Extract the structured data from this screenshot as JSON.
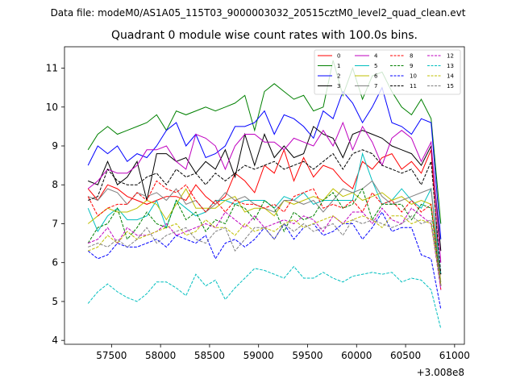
{
  "figure": {
    "data_file_text": "Data file: modeM0/AS1A05_115T03_9000003032_20515cztM0_level2_quad_clean.evt",
    "title": "Quadrant 0 module wise count rates with 100.0s bins.",
    "x_offset_text": "+3.008e8"
  },
  "chart_data": {
    "type": "line",
    "title": "Quadrant 0 module wise count rates with 100.0s bins.",
    "xlabel": "",
    "ylabel": "",
    "x_offset": 300800000,
    "xlim": [
      57020,
      61100
    ],
    "ylim": [
      3.9,
      11.55
    ],
    "grid": false,
    "legend_position": "top-right",
    "legend_ncol": 4,
    "xticks": [
      57500,
      58000,
      58500,
      59000,
      59500,
      60000,
      60500,
      61000
    ],
    "xtick_labels": [
      "57500",
      "58000",
      "58500",
      "59000",
      "59500",
      "60000",
      "60500",
      "61000"
    ],
    "yticks": [
      4,
      5,
      6,
      7,
      8,
      9,
      10,
      11
    ],
    "ytick_labels": [
      "4",
      "5",
      "6",
      "7",
      "8",
      "9",
      "10",
      "11"
    ],
    "x": [
      57260,
      57360,
      57460,
      57560,
      57660,
      57760,
      57860,
      57960,
      58060,
      58160,
      58260,
      58360,
      58460,
      58560,
      58660,
      58760,
      58860,
      58960,
      59060,
      59160,
      59260,
      59360,
      59460,
      59560,
      59660,
      59760,
      59860,
      59960,
      60060,
      60160,
      60260,
      60360,
      60460,
      60560,
      60660,
      60760,
      60860
    ],
    "series": [
      {
        "name": "0",
        "color": "#ff0000",
        "dash": "solid",
        "values": [
          7.9,
          7.6,
          8.0,
          7.9,
          7.7,
          7.6,
          7.5,
          7.6,
          7.7,
          7.7,
          7.6,
          8.0,
          7.7,
          7.5,
          7.7,
          8.3,
          8.1,
          7.8,
          8.5,
          8.3,
          8.9,
          8.1,
          8.7,
          8.2,
          8.5,
          8.4,
          8.1,
          7.9,
          8.6,
          8.4,
          8.7,
          8.8,
          8.4,
          8.6,
          8.3,
          8.9,
          5.4
        ]
      },
      {
        "name": "1",
        "color": "#008000",
        "dash": "solid",
        "values": [
          8.9,
          9.3,
          9.5,
          9.3,
          9.4,
          9.5,
          9.6,
          9.8,
          9.4,
          9.9,
          9.8,
          9.9,
          10.0,
          9.9,
          10.0,
          10.1,
          10.3,
          9.4,
          10.4,
          10.6,
          10.4,
          10.2,
          10.3,
          9.9,
          10.0,
          11.2,
          10.3,
          11.0,
          10.2,
          10.8,
          10.9,
          10.4,
          10.0,
          9.8,
          10.2,
          9.7,
          7.0
        ]
      },
      {
        "name": "2",
        "color": "#0000ff",
        "dash": "solid",
        "values": [
          8.5,
          9.0,
          8.8,
          9.0,
          8.6,
          8.8,
          8.7,
          9.0,
          9.4,
          9.6,
          9.0,
          9.3,
          8.7,
          8.8,
          9.0,
          9.5,
          9.5,
          9.6,
          9.9,
          9.3,
          9.8,
          9.7,
          9.5,
          9.2,
          9.9,
          9.7,
          10.4,
          10.1,
          9.6,
          10.0,
          10.5,
          9.6,
          9.5,
          9.3,
          9.7,
          9.6,
          6.6
        ]
      },
      {
        "name": "3",
        "color": "#000000",
        "dash": "solid",
        "values": [
          8.1,
          8.0,
          8.6,
          8.0,
          8.2,
          8.6,
          7.6,
          8.8,
          8.8,
          8.6,
          8.7,
          8.3,
          8.6,
          8.4,
          8.9,
          8.2,
          9.3,
          8.5,
          9.3,
          8.7,
          9.0,
          8.7,
          8.8,
          9.5,
          9.3,
          9.2,
          8.7,
          9.3,
          9.4,
          9.3,
          9.2,
          9.0,
          8.9,
          8.8,
          8.5,
          9.0,
          6.3
        ]
      },
      {
        "name": "4",
        "color": "#bf00bf",
        "dash": "solid",
        "values": [
          7.9,
          8.1,
          8.4,
          8.3,
          8.3,
          8.5,
          8.9,
          8.9,
          9.0,
          8.6,
          8.4,
          9.3,
          9.2,
          9.0,
          8.4,
          9.0,
          9.3,
          9.3,
          9.1,
          9.1,
          8.9,
          9.2,
          9.1,
          9.0,
          9.4,
          9.0,
          9.6,
          8.9,
          9.5,
          9.1,
          8.5,
          9.2,
          9.4,
          9.2,
          8.6,
          9.1,
          6.0
        ]
      },
      {
        "name": "5",
        "color": "#00bfbf",
        "dash": "solid",
        "values": [
          7.4,
          6.8,
          7.2,
          7.4,
          7.1,
          7.1,
          7.2,
          7.6,
          6.9,
          7.6,
          7.4,
          7.2,
          7.3,
          7.6,
          7.6,
          7.5,
          7.6,
          7.6,
          7.6,
          7.4,
          7.7,
          7.6,
          7.8,
          7.5,
          7.6,
          7.6,
          7.6,
          7.6,
          8.8,
          8.1,
          7.5,
          7.6,
          7.9,
          7.6,
          7.4,
          7.9,
          5.7
        ]
      },
      {
        "name": "6",
        "color": "#bfbf00",
        "dash": "solid",
        "values": [
          7.0,
          7.2,
          7.4,
          7.3,
          7.3,
          7.4,
          7.6,
          7.5,
          7.1,
          7.5,
          7.9,
          7.4,
          7.4,
          7.4,
          7.6,
          7.7,
          7.3,
          7.4,
          7.4,
          7.2,
          7.6,
          7.5,
          7.6,
          7.7,
          7.6,
          7.9,
          7.7,
          7.8,
          7.6,
          7.7,
          7.8,
          7.6,
          7.7,
          7.5,
          7.6,
          7.5,
          5.5
        ]
      },
      {
        "name": "7",
        "color": "#808080",
        "dash": "solid",
        "values": [
          7.7,
          7.6,
          7.9,
          7.8,
          7.5,
          7.8,
          7.7,
          7.8,
          7.6,
          7.9,
          7.5,
          7.6,
          7.3,
          7.5,
          7.8,
          7.6,
          7.7,
          7.5,
          7.4,
          7.3,
          7.6,
          7.6,
          7.5,
          7.6,
          7.3,
          7.6,
          7.9,
          7.8,
          7.9,
          8.1,
          7.7,
          7.5,
          7.6,
          7.7,
          7.8,
          7.9,
          5.4
        ]
      },
      {
        "name": "8",
        "color": "#ff0000",
        "dash": "dashed",
        "values": [
          7.7,
          7.2,
          7.4,
          7.5,
          7.5,
          7.8,
          7.6,
          8.1,
          7.9,
          7.8,
          8.0,
          7.6,
          7.3,
          7.6,
          7.3,
          7.6,
          7.5,
          7.5,
          7.4,
          7.5,
          7.3,
          7.7,
          7.8,
          7.9,
          7.4,
          7.5,
          7.4,
          7.6,
          7.3,
          7.8,
          7.5,
          7.6,
          7.3,
          7.6,
          7.3,
          7.5,
          5.3
        ]
      },
      {
        "name": "9",
        "color": "#008000",
        "dash": "dashed",
        "values": [
          6.5,
          6.9,
          7.0,
          7.4,
          6.6,
          6.9,
          7.3,
          7.0,
          6.9,
          7.6,
          7.1,
          7.3,
          6.8,
          7.1,
          7.0,
          7.5,
          7.4,
          7.1,
          7.6,
          7.4,
          6.8,
          7.3,
          7.1,
          7.2,
          7.6,
          7.8,
          7.4,
          7.5,
          7.9,
          7.1,
          7.5,
          7.5,
          7.5,
          7.1,
          7.5,
          7.4,
          5.4
        ]
      },
      {
        "name": "10",
        "color": "#0000ff",
        "dash": "dashed",
        "values": [
          6.3,
          6.1,
          6.2,
          6.5,
          6.4,
          6.4,
          6.5,
          6.6,
          6.4,
          6.7,
          6.6,
          6.5,
          6.7,
          6.1,
          6.5,
          6.6,
          6.4,
          6.6,
          6.9,
          6.6,
          7.0,
          6.6,
          6.9,
          7.0,
          6.7,
          6.8,
          7.0,
          7.0,
          6.6,
          6.9,
          7.3,
          6.8,
          6.9,
          6.9,
          6.2,
          6.1,
          4.8
        ]
      },
      {
        "name": "11",
        "color": "#000000",
        "dash": "dashed",
        "values": [
          7.6,
          7.7,
          8.4,
          8.1,
          8.0,
          8.0,
          8.2,
          8.3,
          8.0,
          8.4,
          8.2,
          8.3,
          8.0,
          8.3,
          8.1,
          8.3,
          8.5,
          8.4,
          8.5,
          8.6,
          8.4,
          8.5,
          8.6,
          8.4,
          8.6,
          8.8,
          8.4,
          8.8,
          8.9,
          8.8,
          8.5,
          8.4,
          8.3,
          8.4,
          8.0,
          8.6,
          5.7
        ]
      },
      {
        "name": "12",
        "color": "#bf00bf",
        "dash": "dashed",
        "values": [
          6.5,
          6.6,
          6.9,
          6.5,
          6.9,
          6.7,
          6.7,
          6.8,
          7.0,
          6.7,
          6.8,
          6.9,
          7.0,
          6.9,
          7.3,
          7.1,
          6.9,
          7.2,
          6.9,
          7.0,
          7.1,
          7.0,
          7.2,
          7.1,
          6.8,
          7.2,
          7.0,
          7.3,
          7.3,
          7.0,
          7.4,
          7.1,
          7.0,
          7.4,
          7.2,
          7.0,
          5.3
        ]
      },
      {
        "name": "13",
        "color": "#00bfbf",
        "dash": "dashed",
        "values": [
          4.95,
          5.25,
          5.45,
          5.25,
          5.1,
          5.0,
          5.2,
          5.5,
          5.5,
          5.35,
          5.15,
          5.7,
          5.4,
          5.55,
          5.05,
          5.35,
          5.6,
          5.85,
          5.8,
          5.7,
          5.6,
          5.9,
          5.6,
          5.6,
          5.75,
          5.6,
          5.5,
          5.65,
          5.7,
          5.75,
          5.7,
          5.75,
          5.5,
          5.6,
          5.55,
          5.3,
          4.3
        ]
      },
      {
        "name": "14",
        "color": "#bfbf00",
        "dash": "dashed",
        "values": [
          6.3,
          6.4,
          6.7,
          6.5,
          6.8,
          6.6,
          6.7,
          6.8,
          6.9,
          7.0,
          6.7,
          6.8,
          7.1,
          6.9,
          6.9,
          6.7,
          7.0,
          6.8,
          6.9,
          6.8,
          7.0,
          7.1,
          6.9,
          7.0,
          7.1,
          7.2,
          7.0,
          7.1,
          7.2,
          7.1,
          6.9,
          7.2,
          7.2,
          7.0,
          7.1,
          7.0,
          5.4
        ]
      },
      {
        "name": "15",
        "color": "#808080",
        "dash": "dashed",
        "values": [
          6.4,
          6.5,
          6.4,
          6.6,
          6.4,
          6.6,
          6.9,
          6.5,
          6.7,
          6.8,
          6.9,
          6.6,
          6.5,
          6.8,
          6.9,
          6.3,
          6.6,
          6.9,
          6.9,
          6.6,
          7.0,
          6.8,
          7.0,
          6.8,
          6.9,
          7.0,
          6.7,
          7.1,
          7.0,
          7.1,
          7.0,
          6.9,
          7.0,
          7.2,
          7.0,
          7.1,
          5.4
        ]
      }
    ]
  }
}
